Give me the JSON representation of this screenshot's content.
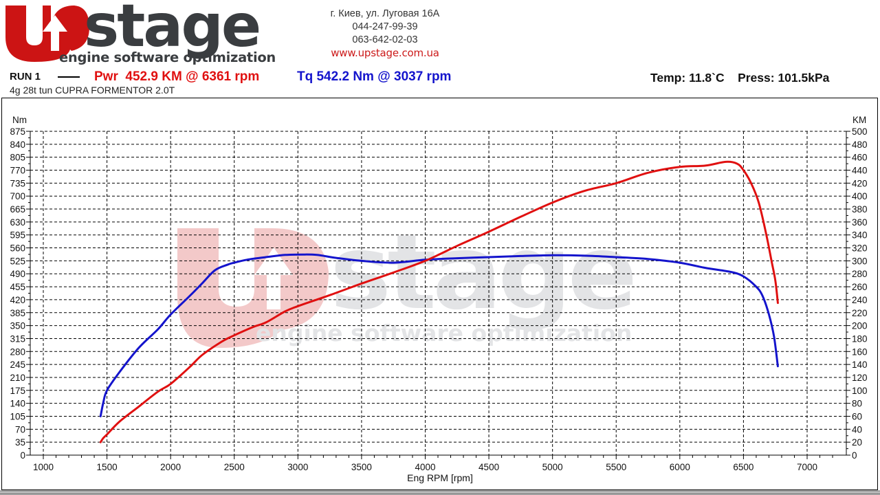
{
  "header": {
    "logo": {
      "brand_mark": "UP",
      "brand_text": "stage",
      "tagline": "engine software optimization",
      "colors": {
        "red": "#cc1414",
        "gray": "#3a3d40"
      }
    },
    "contact": {
      "address": "г. Киев, ул. Луговая 16А",
      "phone1": "044-247-99-39",
      "phone2": "063-642-02-03",
      "website": "www.upstage.com.ua"
    },
    "run_label": "RUN 1",
    "peak_power": "Pwr  452.9 KM @ 6361 rpm",
    "peak_torque": "Tq 542.2 Nm @ 3037 rpm",
    "conditions": "Temp: 11.8`C    Press: 101.5kPa",
    "description": "4g 28t tun CUPRA FORMENTOR 2.0T"
  },
  "chart_data": {
    "type": "line",
    "title": "RUN 1",
    "subtitle": "4g 28t tun CUPRA FORMENTOR 2.0T",
    "xlabel": "Eng RPM [rpm]",
    "ylabel_left": "Nm",
    "ylabel_right": "KM",
    "xlim": [
      950,
      7300
    ],
    "ylim_left": [
      0,
      875
    ],
    "ylim_right": [
      0,
      500
    ],
    "x_ticks": [
      1000,
      1500,
      2000,
      2500,
      3000,
      3500,
      4000,
      4500,
      5000,
      5500,
      6000,
      6500,
      7000
    ],
    "y_ticks_left": [
      0,
      35,
      70,
      105,
      140,
      175,
      210,
      245,
      280,
      315,
      350,
      385,
      420,
      455,
      490,
      525,
      560,
      595,
      630,
      665,
      700,
      735,
      770,
      805,
      840,
      875
    ],
    "y_ticks_right": [
      0,
      20,
      40,
      60,
      80,
      100,
      120,
      140,
      160,
      180,
      200,
      220,
      240,
      260,
      280,
      300,
      320,
      340,
      360,
      380,
      400,
      420,
      440,
      460,
      480,
      500
    ],
    "grid": true,
    "watermark": "UPstage engine software optimization",
    "series": [
      {
        "name": "Tq (Nm)",
        "axis": "left",
        "color": "#1414cc",
        "x": [
          1450,
          1470,
          1500,
          1600,
          1750,
          1900,
          2000,
          2150,
          2250,
          2350,
          2450,
          2500,
          2600,
          2750,
          2900,
          3037,
          3150,
          3300,
          3500,
          3750,
          4000,
          4250,
          4500,
          4750,
          5000,
          5250,
          5500,
          5750,
          6000,
          6200,
          6400,
          6500,
          6600,
          6650,
          6700,
          6740,
          6770
        ],
        "values": [
          105,
          140,
          175,
          225,
          290,
          340,
          380,
          430,
          465,
          500,
          515,
          520,
          528,
          535,
          541,
          542,
          541,
          533,
          525,
          520,
          528,
          532,
          535,
          538,
          540,
          539,
          535,
          530,
          520,
          506,
          495,
          483,
          455,
          430,
          380,
          320,
          240
        ]
      },
      {
        "name": "Pwr (KM)",
        "axis": "right",
        "color": "#e01010",
        "x": [
          1450,
          1470,
          1500,
          1600,
          1750,
          1900,
          2000,
          2150,
          2250,
          2400,
          2500,
          2650,
          2750,
          2900,
          3000,
          3250,
          3500,
          3750,
          4000,
          4250,
          4500,
          4750,
          5000,
          5250,
          5500,
          5750,
          6000,
          6200,
          6361,
          6450,
          6500,
          6560,
          6620,
          6680,
          6720,
          6750,
          6770
        ],
        "values": [
          20,
          26,
          32,
          52,
          75,
          98,
          110,
          136,
          155,
          175,
          185,
          198,
          205,
          222,
          230,
          247,
          265,
          282,
          300,
          323,
          345,
          368,
          390,
          408,
          420,
          436,
          445,
          447,
          452.9,
          450,
          440,
          420,
          390,
          340,
          300,
          270,
          235
        ]
      }
    ]
  }
}
